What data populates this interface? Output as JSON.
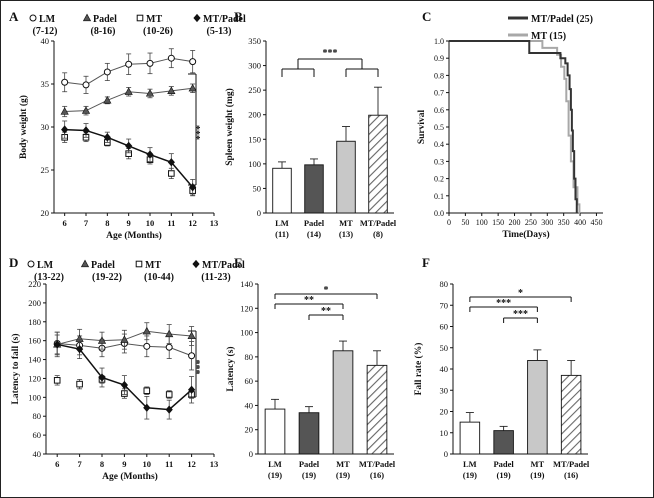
{
  "chart_data": [
    {
      "panel": "A",
      "type": "line",
      "xlabel": "Age (Months)",
      "ylabel": "Body weight (g)",
      "xlim": [
        5.5,
        13
      ],
      "ylim": [
        20,
        40
      ],
      "xticks": [
        6,
        7,
        8,
        9,
        10,
        11,
        12,
        13
      ],
      "yticks": [
        20,
        25,
        30,
        35,
        40
      ],
      "legend": [
        {
          "marker": "circle-open",
          "name": "LM",
          "n": "(7-12)"
        },
        {
          "marker": "triangle",
          "name": "Padel",
          "n": "(8-16)"
        },
        {
          "marker": "square-open",
          "name": "MT",
          "n": "(10-26)"
        },
        {
          "marker": "diamond",
          "name": "MT/Padel",
          "n": "(5-13)"
        }
      ],
      "x": [
        6,
        7,
        8,
        9,
        10,
        11,
        12
      ],
      "series": [
        {
          "name": "LM",
          "values": [
            35.2,
            34.9,
            36.4,
            37.3,
            37.4,
            38.0,
            37.6
          ],
          "errors": [
            1.1,
            1.0,
            1.0,
            1.2,
            1.2,
            1.1,
            1.3
          ]
        },
        {
          "name": "Padel",
          "values": [
            31.8,
            31.9,
            33.1,
            34.1,
            33.9,
            34.2,
            34.5
          ],
          "errors": [
            0.6,
            0.5,
            0.4,
            0.5,
            0.5,
            0.5,
            0.5
          ]
        },
        {
          "name": "MT",
          "values": [
            28.8,
            28.8,
            28.2,
            26.9,
            26.2,
            24.6,
            22.6
          ],
          "errors": [
            0.6,
            0.5,
            0.4,
            0.6,
            0.5,
            0.6,
            0.6
          ]
        },
        {
          "name": "MT/Padel",
          "values": [
            29.7,
            29.6,
            28.8,
            27.8,
            26.8,
            25.9,
            23.0
          ],
          "errors": [
            1.0,
            0.8,
            0.6,
            0.8,
            0.8,
            1.0,
            0.9
          ]
        }
      ],
      "significance": "***"
    },
    {
      "panel": "B",
      "type": "bar",
      "ylabel": "Spleen weight (mg)",
      "ylim": [
        0,
        350
      ],
      "yticks": [
        0,
        50,
        100,
        150,
        200,
        250,
        300,
        350
      ],
      "categories": [
        "LM",
        "Padel",
        "MT",
        "MT/Padel"
      ],
      "n": [
        "(11)",
        "(14)",
        "(13)",
        "(8)"
      ],
      "values": [
        91,
        98,
        146,
        199
      ],
      "errors": [
        13,
        12,
        30,
        57
      ],
      "fills": [
        "#ffffff",
        "#555555",
        "#c8c8c8",
        "hatch"
      ],
      "significance": "***"
    },
    {
      "panel": "C",
      "type": "line",
      "xlabel": "Time(Days)",
      "ylabel": "Survival",
      "xlim": [
        0,
        470
      ],
      "ylim": [
        0,
        1
      ],
      "xticks": [
        0,
        50,
        100,
        150,
        200,
        250,
        300,
        350,
        400,
        450
      ],
      "yticks": [
        0,
        0.1,
        0.2,
        0.3,
        0.4,
        0.5,
        0.6,
        0.7,
        0.8,
        0.9,
        1.0
      ],
      "series": [
        {
          "name": "MT/Padel (25)",
          "color": "#333333",
          "x": [
            0,
            245,
            245,
            340,
            340,
            355,
            355,
            362,
            362,
            368,
            368,
            372,
            372,
            375,
            375,
            378,
            378,
            382,
            382,
            386,
            386,
            390,
            390
          ],
          "values": [
            1.0,
            1.0,
            0.93,
            0.93,
            0.9,
            0.9,
            0.87,
            0.87,
            0.8,
            0.8,
            0.72,
            0.72,
            0.6,
            0.6,
            0.48,
            0.48,
            0.36,
            0.36,
            0.2,
            0.2,
            0.08,
            0.08,
            0
          ]
        },
        {
          "name": "MT (15)",
          "color": "#a8a8a8",
          "x": [
            0,
            285,
            285,
            330,
            330,
            342,
            342,
            352,
            352,
            358,
            358,
            365,
            365,
            372,
            372,
            380,
            380,
            392,
            392,
            398,
            398,
            400
          ],
          "values": [
            1.0,
            1.0,
            0.96,
            0.96,
            0.92,
            0.92,
            0.85,
            0.85,
            0.78,
            0.78,
            0.65,
            0.65,
            0.45,
            0.45,
            0.3,
            0.3,
            0.15,
            0.15,
            0.05,
            0.05,
            0,
            0
          ]
        }
      ]
    },
    {
      "panel": "D",
      "type": "line",
      "xlabel": "Age (Months)",
      "ylabel": "Latency to fall (s)",
      "xlim": [
        5.5,
        13
      ],
      "ylim": [
        40,
        220
      ],
      "xticks": [
        6,
        7,
        8,
        9,
        10,
        11,
        12,
        13
      ],
      "yticks": [
        40,
        60,
        80,
        100,
        120,
        140,
        160,
        180,
        200,
        220
      ],
      "legend": [
        {
          "marker": "circle-open",
          "name": "LM",
          "n": "(13-22)"
        },
        {
          "marker": "triangle",
          "name": "Padel",
          "n": "(19-22)"
        },
        {
          "marker": "square-open",
          "name": "MT",
          "n": "(10-44)"
        },
        {
          "marker": "diamond",
          "name": "MT/Padel",
          "n": "(11-23)"
        }
      ],
      "x": [
        6,
        7,
        8,
        9,
        10,
        11,
        12
      ],
      "series": [
        {
          "name": "LM",
          "values": [
            157,
            155,
            152,
            157,
            154,
            153,
            144
          ],
          "errors": [
            12,
            10,
            9,
            10,
            11,
            12,
            15
          ]
        },
        {
          "name": "Padel",
          "values": [
            156,
            162,
            160,
            161,
            170,
            167,
            165
          ],
          "errors": [
            10,
            10,
            9,
            10,
            9,
            10,
            10
          ]
        },
        {
          "name": "MT",
          "values": [
            118,
            114,
            119,
            104,
            107,
            103,
            103
          ],
          "errors": [
            5,
            5,
            4,
            5,
            4,
            4,
            4
          ]
        },
        {
          "name": "MT/Padel",
          "values": [
            156,
            151,
            121,
            113,
            89,
            87,
            108
          ],
          "errors": [
            13,
            10,
            10,
            10,
            12,
            10,
            14
          ]
        }
      ],
      "significance": "***"
    },
    {
      "panel": "E",
      "type": "bar",
      "ylabel": "Latency (s)",
      "ylim": [
        0,
        140
      ],
      "yticks": [
        0,
        20,
        40,
        60,
        80,
        100,
        120,
        140
      ],
      "categories": [
        "LM",
        "Padel",
        "MT",
        "MT/Padel"
      ],
      "n": [
        "(19)",
        "(19)",
        "(19)",
        "(16)"
      ],
      "values": [
        37,
        34,
        85,
        73
      ],
      "errors": [
        8,
        5,
        8,
        12
      ],
      "fills": [
        "#ffffff",
        "#555555",
        "#c8c8c8",
        "hatch"
      ],
      "comparisons": [
        {
          "from": "LM",
          "to": "MT/Padel",
          "label": "*"
        },
        {
          "from": "LM",
          "to": "MT",
          "label": "**"
        },
        {
          "from": "Padel",
          "to": "MT",
          "label": "**"
        }
      ]
    },
    {
      "panel": "F",
      "type": "bar",
      "ylabel": "Fall rate (%)",
      "ylim": [
        0,
        80
      ],
      "yticks": [
        0,
        10,
        20,
        30,
        40,
        50,
        60,
        70,
        80
      ],
      "categories": [
        "LM",
        "Padel",
        "MT",
        "MT/Padel"
      ],
      "n": [
        "(19)",
        "(19)",
        "(19)",
        "(16)"
      ],
      "values": [
        15,
        11,
        44,
        37
      ],
      "errors": [
        4.5,
        2,
        5,
        7
      ],
      "fills": [
        "#ffffff",
        "#555555",
        "#c8c8c8",
        "hatch"
      ],
      "comparisons": [
        {
          "from": "LM",
          "to": "MT/Padel",
          "label": "*"
        },
        {
          "from": "LM",
          "to": "MT",
          "label": "***"
        },
        {
          "from": "Padel",
          "to": "MT",
          "label": "***"
        }
      ]
    }
  ]
}
